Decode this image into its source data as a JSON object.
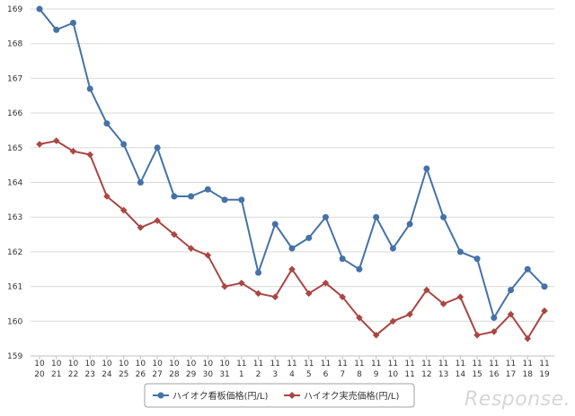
{
  "chart_data": {
    "type": "line",
    "title": "",
    "xlabel": "",
    "ylabel": "",
    "ylim": [
      159,
      169
    ],
    "yticks": [
      159,
      160,
      161,
      162,
      163,
      164,
      165,
      166,
      167,
      168,
      169
    ],
    "grid": "horizontal",
    "legend_position": "bottom-center",
    "categories": [
      [
        "10",
        "20"
      ],
      [
        "10",
        "21"
      ],
      [
        "10",
        "22"
      ],
      [
        "10",
        "23"
      ],
      [
        "10",
        "24"
      ],
      [
        "10",
        "25"
      ],
      [
        "10",
        "26"
      ],
      [
        "10",
        "27"
      ],
      [
        "10",
        "28"
      ],
      [
        "10",
        "29"
      ],
      [
        "10",
        "30"
      ],
      [
        "10",
        "31"
      ],
      [
        "11",
        "1"
      ],
      [
        "11",
        "2"
      ],
      [
        "11",
        "3"
      ],
      [
        "11",
        "4"
      ],
      [
        "11",
        "5"
      ],
      [
        "11",
        "6"
      ],
      [
        "11",
        "7"
      ],
      [
        "11",
        "8"
      ],
      [
        "11",
        "9"
      ],
      [
        "11",
        "10"
      ],
      [
        "11",
        "11"
      ],
      [
        "11",
        "12"
      ],
      [
        "11",
        "13"
      ],
      [
        "11",
        "14"
      ],
      [
        "11",
        "15"
      ],
      [
        "11",
        "16"
      ],
      [
        "11",
        "17"
      ],
      [
        "11",
        "18"
      ],
      [
        "11",
        "19"
      ]
    ],
    "series": [
      {
        "name": "ハイオク看板価格(円/L)",
        "color": "#4572a7",
        "marker": "circle",
        "values": [
          169.0,
          168.4,
          168.6,
          166.7,
          165.7,
          165.1,
          164.0,
          165.0,
          163.6,
          163.6,
          163.8,
          163.5,
          163.5,
          161.4,
          162.8,
          162.1,
          162.4,
          163.0,
          161.8,
          161.5,
          163.0,
          162.1,
          162.8,
          164.4,
          163.0,
          162.0,
          161.8,
          160.1,
          160.9,
          161.5,
          161.0
        ]
      },
      {
        "name": "ハイオク実売価格(円/L)",
        "color": "#aa4643",
        "marker": "diamond",
        "values": [
          165.1,
          165.2,
          164.9,
          164.8,
          163.6,
          163.2,
          162.7,
          162.9,
          162.5,
          162.1,
          161.9,
          161.0,
          161.1,
          160.8,
          160.7,
          161.5,
          160.8,
          161.1,
          160.7,
          160.1,
          159.6,
          160.0,
          160.2,
          160.9,
          160.5,
          160.7,
          159.6,
          159.7,
          160.2,
          159.5,
          160.3
        ]
      }
    ]
  },
  "watermark": {
    "text": "Response."
  }
}
